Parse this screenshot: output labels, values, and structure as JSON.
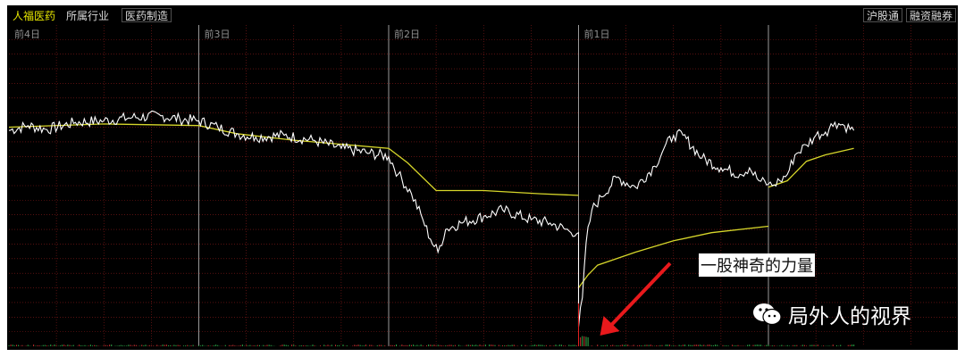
{
  "toolbar": {
    "stock_name": "人福医药",
    "industry_label": "所属行业",
    "sector": "医药制造",
    "hk_connect": "沪股通",
    "margin_trading": "融资融券"
  },
  "colors": {
    "background": "#000000",
    "price_line": "#ffffff",
    "avg_line": "#d6d62a",
    "grid": "#8b1a1a",
    "day_divider": "#9a9a9a",
    "arrow": "#e8191c",
    "volume": "#e02020"
  },
  "annotation": {
    "text": "一股神奇的力量"
  },
  "watermark": {
    "icon": "wechat-icon",
    "text": "局外人的视界"
  },
  "chart_data": {
    "type": "line",
    "title": "",
    "xlabel": "",
    "ylabel": "",
    "days": [
      "前4日",
      "前3日",
      "前2日",
      "前1日",
      ""
    ],
    "grid": true,
    "series": [
      {
        "points": [
          [
            0.0,
            1.15
          ],
          [
            0.1,
            1.3
          ],
          [
            0.2,
            1.18
          ],
          [
            0.35,
            1.4
          ],
          [
            0.5,
            1.45
          ],
          [
            0.65,
            1.55
          ],
          [
            0.8,
            1.6
          ],
          [
            0.9,
            1.5
          ],
          [
            1.0,
            1.45
          ],
          [
            1.1,
            1.25
          ],
          [
            1.2,
            1.05
          ],
          [
            1.3,
            0.95
          ],
          [
            1.45,
            1.0
          ],
          [
            1.6,
            0.85
          ],
          [
            1.75,
            0.6
          ],
          [
            1.9,
            0.45
          ],
          [
            2.0,
            0.35
          ],
          [
            2.05,
            -0.2
          ],
          [
            2.12,
            -0.8
          ],
          [
            2.18,
            -1.6
          ],
          [
            2.22,
            -2.2
          ],
          [
            2.26,
            -2.6
          ],
          [
            2.3,
            -1.9
          ],
          [
            2.38,
            -1.7
          ],
          [
            2.5,
            -1.5
          ],
          [
            2.6,
            -1.3
          ],
          [
            2.75,
            -1.6
          ],
          [
            2.85,
            -1.7
          ],
          [
            2.95,
            -1.95
          ],
          [
            3.0,
            -2.0
          ],
          [
            3.0,
            -4.9
          ],
          [
            3.02,
            -4.0
          ],
          [
            3.04,
            -2.3
          ],
          [
            3.07,
            -1.3
          ],
          [
            3.12,
            -0.9
          ],
          [
            3.2,
            -0.3
          ],
          [
            3.3,
            -0.6
          ],
          [
            3.4,
            0.05
          ],
          [
            3.45,
            0.6
          ],
          [
            3.5,
            1.0
          ],
          [
            3.55,
            1.0
          ],
          [
            3.65,
            0.3
          ],
          [
            3.75,
            0.0
          ],
          [
            3.85,
            -0.2
          ],
          [
            3.9,
            0.0
          ],
          [
            3.95,
            -0.4
          ],
          [
            4.0,
            -0.5
          ],
          [
            4.02,
            -0.55
          ],
          [
            4.06,
            -0.4
          ],
          [
            4.1,
            -0.2
          ],
          [
            4.14,
            0.4
          ],
          [
            4.2,
            0.7
          ],
          [
            4.25,
            1.0
          ],
          [
            4.3,
            1.1
          ],
          [
            4.35,
            1.4
          ],
          [
            4.4,
            1.3
          ],
          [
            4.45,
            1.15
          ]
        ]
      },
      {
        "points": [
          [
            0.0,
            1.25
          ],
          [
            0.5,
            1.35
          ],
          [
            1.0,
            1.3
          ],
          [
            1.2,
            1.05
          ],
          [
            1.5,
            0.85
          ],
          [
            2.0,
            0.6
          ],
          [
            2.1,
            0.15
          ],
          [
            2.25,
            -0.7
          ],
          [
            2.5,
            -0.7
          ],
          [
            2.8,
            -0.8
          ],
          [
            3.0,
            -0.85
          ],
          [
            3.0,
            -3.7
          ],
          [
            3.05,
            -3.3
          ],
          [
            3.1,
            -3.0
          ],
          [
            3.3,
            -2.6
          ],
          [
            3.5,
            -2.25
          ],
          [
            3.7,
            -2.0
          ],
          [
            4.0,
            -1.8
          ],
          [
            4.0,
            -0.6
          ],
          [
            4.1,
            -0.4
          ],
          [
            4.2,
            0.2
          ],
          [
            4.3,
            0.4
          ],
          [
            4.45,
            0.6
          ]
        ]
      }
    ],
    "volume": {
      "spike_day": 3,
      "spike_value": 1.0
    }
  }
}
